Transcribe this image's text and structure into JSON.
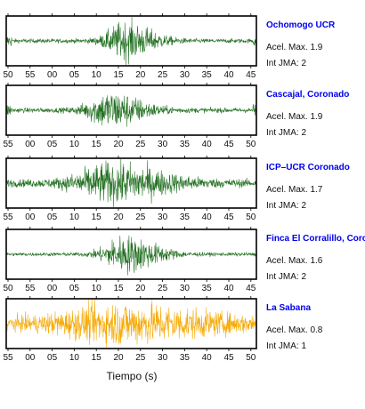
{
  "colors": {
    "trace_green": "#1f6e1f",
    "trace_orange": "#f5a800",
    "station_title": "#0000ee"
  },
  "chart_data": {
    "type": "line",
    "xlabel": "Tiempo (s)",
    "grid": false,
    "legend": "none",
    "panels": [
      {
        "station": "Ochomogo UCR",
        "peak_label": "Acel. Max. 1.9",
        "intensity_label": "Int JMA: 2",
        "color": "#1f6e1f",
        "tick_labels": [
          "50",
          "55",
          "00",
          "05",
          "10",
          "15",
          "20",
          "25",
          "30",
          "35",
          "40",
          "45"
        ],
        "tick_labels_shown": true,
        "noise_level": 0.12,
        "burst_center_tick": 5.3,
        "burst_width_ticks": 1.4,
        "burst_peak": 1.0,
        "edge_spikes": true,
        "extra_spikes": []
      },
      {
        "station": "Cascajal, Coronado",
        "peak_label": "Acel. Max. 1.9",
        "intensity_label": "Int JMA: 2",
        "color": "#1f6e1f",
        "tick_labels": [
          "55",
          "00",
          "05",
          "10",
          "15",
          "20",
          "25",
          "30",
          "35",
          "40",
          "45",
          "50"
        ],
        "tick_labels_shown": true,
        "noise_level": 0.14,
        "burst_center_tick": 4.6,
        "burst_width_ticks": 1.6,
        "burst_peak": 1.0,
        "edge_spikes": true,
        "extra_spikes": []
      },
      {
        "station": "ICP–UCR Coronado",
        "peak_label": "Acel. Max. 1.7",
        "intensity_label": "Int JMA: 2",
        "color": "#1f6e1f",
        "tick_labels": [
          "55",
          "00",
          "05",
          "10",
          "15",
          "20",
          "25",
          "30",
          "35",
          "40",
          "45",
          "50"
        ],
        "tick_labels_shown": true,
        "noise_level": 0.22,
        "burst_center_tick": 4.7,
        "burst_width_ticks": 2.6,
        "burst_peak": 1.0,
        "edge_spikes": false,
        "extra_spikes": []
      },
      {
        "station": "Finca El Corralillo, Coronado",
        "peak_label": "Acel. Max. 1.6",
        "intensity_label": "Int JMA: 2",
        "color": "#1f6e1f",
        "tick_labels": [
          "50",
          "55",
          "00",
          "05",
          "10",
          "15",
          "20",
          "25",
          "30",
          "35",
          "40",
          "45"
        ],
        "tick_labels_shown": true,
        "noise_level": 0.1,
        "burst_center_tick": 5.3,
        "burst_width_ticks": 1.6,
        "burst_peak": 1.0,
        "edge_spikes": false,
        "extra_spikes": []
      },
      {
        "station": "La Sabana",
        "peak_label": "Acel. Max. 0.8",
        "intensity_label": "Int JMA: 1",
        "color": "#f5a800",
        "tick_labels": [
          "55",
          "00",
          "05",
          "10",
          "15",
          "20",
          "25",
          "30",
          "35",
          "40",
          "45",
          "50"
        ],
        "tick_labels_shown": true,
        "noise_level": 0.42,
        "burst_center_tick": 5.0,
        "burst_width_ticks": 4.0,
        "burst_peak": 0.85,
        "edge_spikes": false,
        "extra_spikes": [
          {
            "tick": 7.2,
            "amp": 1.0
          }
        ]
      }
    ]
  }
}
